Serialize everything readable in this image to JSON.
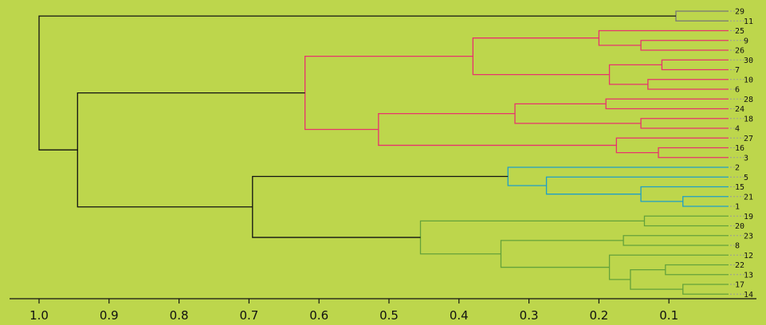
{
  "chart_data": {
    "type": "dendrogram",
    "orientation": "right-to-left",
    "xlim": [
      1.0,
      0.0
    ],
    "x_ticks": [
      1.0,
      0.9,
      0.8,
      0.7,
      0.6,
      0.5,
      0.4,
      0.3,
      0.2,
      0.1
    ],
    "x_tick_labels": [
      "1.0",
      "0.9",
      "0.8",
      "0.7",
      "0.6",
      "0.5",
      "0.4",
      "0.3",
      "0.2",
      "0.1"
    ],
    "leaf_order": [
      "29",
      "11",
      "25",
      "9",
      "26",
      "30",
      "7",
      "10",
      "6",
      "28",
      "24",
      "18",
      "4",
      "27",
      "16",
      "3",
      "2",
      "5",
      "15",
      "21",
      "1",
      "19",
      "20",
      "23",
      "8",
      "12",
      "22",
      "13",
      "17",
      "14"
    ],
    "merges": [
      {
        "a": "29",
        "b": "11",
        "height": 0.09,
        "color": "gray"
      },
      {
        "a": "9",
        "b": "26",
        "height": 0.14,
        "color": "red"
      },
      {
        "a": "25",
        "b": [
          "9",
          "26"
        ],
        "height": 0.2,
        "color": "red"
      },
      {
        "a": "30",
        "b": "7",
        "height": 0.11,
        "color": "red"
      },
      {
        "a": "10",
        "b": "6",
        "height": 0.13,
        "color": "red"
      },
      {
        "a": [
          "30",
          "7"
        ],
        "b": [
          "10",
          "6"
        ],
        "height": 0.185,
        "color": "red"
      },
      {
        "a": [
          "25",
          "9",
          "26"
        ],
        "b": [
          "30",
          "7",
          "10",
          "6"
        ],
        "height": 0.38,
        "color": "red"
      },
      {
        "a": "28",
        "b": "24",
        "height": 0.19,
        "color": "red"
      },
      {
        "a": "18",
        "b": "4",
        "height": 0.14,
        "color": "red"
      },
      {
        "a": [
          "28",
          "24"
        ],
        "b": [
          "18",
          "4"
        ],
        "height": 0.32,
        "color": "red"
      },
      {
        "a": "16",
        "b": "3",
        "height": 0.115,
        "color": "red"
      },
      {
        "a": "27",
        "b": [
          "16",
          "3"
        ],
        "height": 0.175,
        "color": "red"
      },
      {
        "a": [
          "28",
          "24",
          "18",
          "4"
        ],
        "b": [
          "27",
          "16",
          "3"
        ],
        "height": 0.515,
        "color": "red"
      },
      {
        "a": [
          "25",
          "9",
          "26",
          "30",
          "7",
          "10",
          "6"
        ],
        "b": [
          "28",
          "24",
          "18",
          "4",
          "27",
          "16",
          "3"
        ],
        "height": 0.62,
        "color": "red"
      },
      {
        "a": "21",
        "b": "1",
        "height": 0.08,
        "color": "blue"
      },
      {
        "a": "15",
        "b": [
          "21",
          "1"
        ],
        "height": 0.14,
        "color": "blue"
      },
      {
        "a": "5",
        "b": [
          "15",
          "21",
          "1"
        ],
        "height": 0.275,
        "color": "blue"
      },
      {
        "a": "2",
        "b": [
          "5",
          "15",
          "21",
          "1"
        ],
        "height": 0.33,
        "color": "blue"
      },
      {
        "a": "19",
        "b": "20",
        "height": 0.135,
        "color": "green"
      },
      {
        "a": "23",
        "b": "8",
        "height": 0.165,
        "color": "green"
      },
      {
        "a": "22",
        "b": "13",
        "height": 0.105,
        "color": "green"
      },
      {
        "a": "17",
        "b": "14",
        "height": 0.08,
        "color": "green"
      },
      {
        "a": [
          "22",
          "13"
        ],
        "b": [
          "17",
          "14"
        ],
        "height": 0.155,
        "color": "green"
      },
      {
        "a": "12",
        "b": [
          "22",
          "13",
          "17",
          "14"
        ],
        "height": 0.185,
        "color": "green"
      },
      {
        "a": [
          "23",
          "8"
        ],
        "b": [
          "12",
          "22",
          "13",
          "17",
          "14"
        ],
        "height": 0.34,
        "color": "green"
      },
      {
        "a": [
          "19",
          "20"
        ],
        "b": [
          "23",
          "8",
          "12",
          "22",
          "13",
          "17",
          "14"
        ],
        "height": 0.455,
        "color": "green"
      },
      {
        "a": [
          "2",
          "5",
          "15",
          "21",
          "1"
        ],
        "b": [
          "19",
          "20",
          "23",
          "8",
          "12",
          "22",
          "13",
          "17",
          "14"
        ],
        "height": 0.695,
        "color": "black"
      },
      {
        "a": [
          "25",
          "9",
          "26",
          "30",
          "7",
          "10",
          "6",
          "28",
          "24",
          "18",
          "4",
          "27",
          "16",
          "3"
        ],
        "b": [
          "2",
          "5",
          "15",
          "21",
          "1",
          "19",
          "20",
          "23",
          "8",
          "12",
          "22",
          "13",
          "17",
          "14"
        ],
        "height": 0.945,
        "color": "black"
      },
      {
        "a": [
          "29",
          "11"
        ],
        "b": [
          "25",
          "9",
          "26",
          "30",
          "7",
          "10",
          "6",
          "28",
          "24",
          "18",
          "4",
          "27",
          "16",
          "3",
          "2",
          "5",
          "15",
          "21",
          "1",
          "19",
          "20",
          "23",
          "8",
          "12",
          "22",
          "13",
          "17",
          "14"
        ],
        "height": 1.0,
        "color": "black"
      }
    ],
    "grid": false,
    "legend": "none"
  },
  "colors": {
    "background": "#bdd64c",
    "gray": "#777777",
    "red": "#e8336d",
    "blue": "#1f9fc7",
    "green": "#64a23a",
    "black": "#111111",
    "leader": "#9a9a9a",
    "axis": "#111111"
  }
}
